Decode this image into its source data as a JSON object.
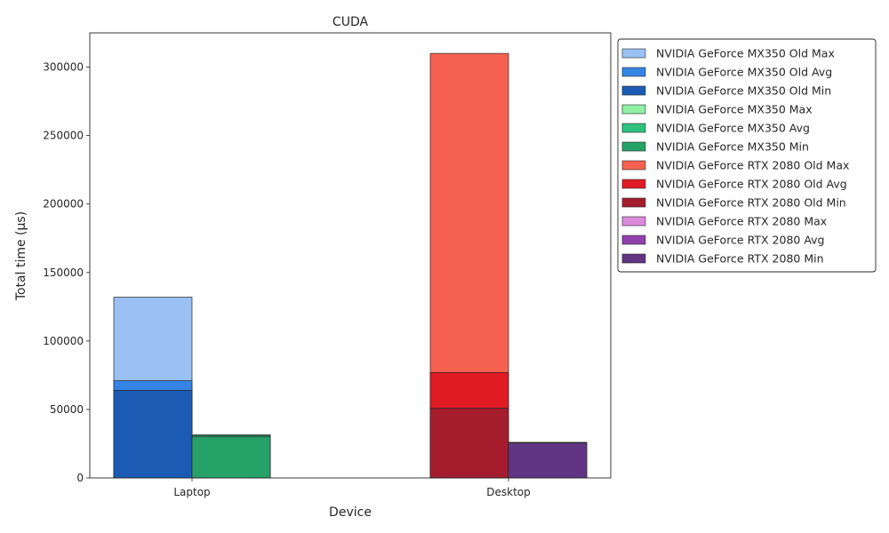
{
  "chart_data": {
    "type": "bar",
    "title": "CUDA",
    "xlabel": "Device",
    "ylabel": "Total time (µs)",
    "categories": [
      "Laptop",
      "Desktop"
    ],
    "ylim": [
      0,
      325000
    ],
    "yticks": [
      0,
      50000,
      100000,
      150000,
      200000,
      250000,
      300000
    ],
    "ytick_labels": [
      "0",
      "50000",
      "100000",
      "150000",
      "200000",
      "250000",
      "300000"
    ],
    "grid": false,
    "legend_position": "outside-right-top",
    "groups": [
      {
        "category": "Laptop",
        "slot": 0,
        "series": [
          {
            "name": "NVIDIA GeForce MX350 Old Max",
            "value": 132000,
            "color": "#9bc1f4"
          },
          {
            "name": "NVIDIA GeForce MX350 Old Avg",
            "value": 71000,
            "color": "#3584e4"
          },
          {
            "name": "NVIDIA GeForce MX350 Old Min",
            "value": 64000,
            "color": "#1c5bb4"
          }
        ]
      },
      {
        "category": "Laptop",
        "slot": 1,
        "series": [
          {
            "name": "NVIDIA GeForce MX350 Max",
            "value": 31500,
            "color": "#8ff0a4"
          },
          {
            "name": "NVIDIA GeForce MX350 Avg",
            "value": 31000,
            "color": "#2ec27e"
          },
          {
            "name": "NVIDIA GeForce MX350 Min",
            "value": 30000,
            "color": "#26a269"
          }
        ]
      },
      {
        "category": "Desktop",
        "slot": 0,
        "series": [
          {
            "name": "NVIDIA GeForce RTX 2080 Old Max",
            "value": 310000,
            "color": "#f66151"
          },
          {
            "name": "NVIDIA GeForce RTX 2080 Old Avg",
            "value": 77000,
            "color": "#e01b24"
          },
          {
            "name": "NVIDIA GeForce RTX 2080 Old Min",
            "value": 51000,
            "color": "#a51d2d"
          }
        ]
      },
      {
        "category": "Desktop",
        "slot": 1,
        "series": [
          {
            "name": "NVIDIA GeForce RTX 2080 Max",
            "value": 26000,
            "color": "#dc8add"
          },
          {
            "name": "NVIDIA GeForce RTX 2080 Avg",
            "value": 25800,
            "color": "#9141ac"
          },
          {
            "name": "NVIDIA GeForce RTX 2080 Min",
            "value": 25500,
            "color": "#613583"
          }
        ]
      }
    ]
  }
}
